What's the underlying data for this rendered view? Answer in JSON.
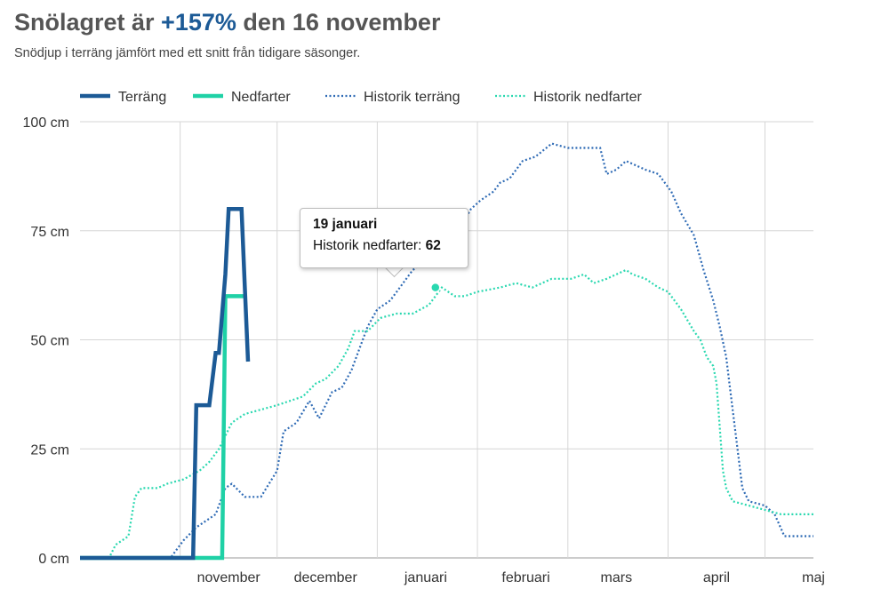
{
  "header": {
    "title_prefix": "Snölagret är ",
    "title_highlight": "+157%",
    "title_suffix": " den 16 november",
    "subtitle": "Snödjup i terräng jämfört med ett snitt från tidigare säsonger."
  },
  "colors": {
    "terrang": "#1c5a96",
    "nedfarter": "#1fd1a6",
    "historik_terrang": "#2f6bb5",
    "historik_nedfarter": "#2ad8b0",
    "grid": "#d6d6d6"
  },
  "tooltip": {
    "date": "19 januari",
    "label": "Historik nedfarter: ",
    "value": "62"
  },
  "chart_data": {
    "type": "line",
    "title": "",
    "xlabel": "",
    "ylabel": "",
    "ylim": [
      0,
      100
    ],
    "y_ticks": [
      0,
      25,
      50,
      75,
      100
    ],
    "y_tick_labels": [
      "0 cm",
      "25 cm",
      "50 cm",
      "75 cm",
      "100 cm"
    ],
    "x_unit": "day of season (1 = 1 oktober)",
    "xlim": [
      1,
      228
    ],
    "month_labels": [
      {
        "label": "november",
        "day": 47
      },
      {
        "label": "december",
        "day": 77
      },
      {
        "label": "januari",
        "day": 108
      },
      {
        "label": "februari",
        "day": 139
      },
      {
        "label": "mars",
        "day": 167
      },
      {
        "label": "april",
        "day": 198
      },
      {
        "label": "maj",
        "day": 228
      }
    ],
    "gridlines_x_days": [
      32,
      62,
      93,
      124,
      152,
      183,
      213
    ],
    "grid": true,
    "legend_position": "top",
    "series": [
      {
        "name": "Terräng",
        "style": "solid",
        "points": [
          [
            1,
            0
          ],
          [
            18,
            0
          ],
          [
            36,
            0
          ],
          [
            37,
            35
          ],
          [
            41,
            35
          ],
          [
            43,
            47
          ],
          [
            44,
            47
          ],
          [
            46,
            65
          ],
          [
            47,
            80
          ],
          [
            51,
            80
          ],
          [
            52,
            62
          ],
          [
            53,
            45
          ]
        ]
      },
      {
        "name": "Nedfarter",
        "style": "solid",
        "points": [
          [
            1,
            0
          ],
          [
            25,
            0
          ],
          [
            45,
            0
          ],
          [
            46,
            60
          ],
          [
            52,
            60
          ]
        ]
      },
      {
        "name": "Historik terräng",
        "style": "dotted",
        "points": [
          [
            1,
            0
          ],
          [
            20,
            0
          ],
          [
            29,
            0
          ],
          [
            33,
            4
          ],
          [
            37,
            7
          ],
          [
            43,
            10
          ],
          [
            46,
            16
          ],
          [
            48,
            17
          ],
          [
            52,
            14
          ],
          [
            57,
            14
          ],
          [
            62,
            20
          ],
          [
            64,
            29
          ],
          [
            68,
            31
          ],
          [
            72,
            36
          ],
          [
            75,
            32
          ],
          [
            79,
            38
          ],
          [
            82,
            39
          ],
          [
            85,
            43
          ],
          [
            88,
            49
          ],
          [
            90,
            53
          ],
          [
            93,
            57
          ],
          [
            97,
            59
          ],
          [
            100,
            62
          ],
          [
            104,
            66
          ],
          [
            108,
            68
          ],
          [
            113,
            71
          ],
          [
            118,
            75
          ],
          [
            122,
            80
          ],
          [
            125,
            82
          ],
          [
            129,
            84
          ],
          [
            131,
            86
          ],
          [
            134,
            87
          ],
          [
            138,
            91
          ],
          [
            142,
            92
          ],
          [
            147,
            95
          ],
          [
            152,
            94
          ],
          [
            156,
            94
          ],
          [
            162,
            94
          ],
          [
            164,
            88
          ],
          [
            167,
            89
          ],
          [
            170,
            91
          ],
          [
            176,
            89
          ],
          [
            180,
            88
          ],
          [
            184,
            84
          ],
          [
            187,
            79
          ],
          [
            191,
            74
          ],
          [
            194,
            66
          ],
          [
            197,
            59
          ],
          [
            199,
            53
          ],
          [
            201,
            46
          ],
          [
            202,
            40
          ],
          [
            205,
            22
          ],
          [
            206,
            16
          ],
          [
            208,
            13
          ],
          [
            213,
            12
          ],
          [
            216,
            10
          ],
          [
            219,
            5
          ],
          [
            228,
            5
          ]
        ]
      },
      {
        "name": "Historik nedfarter",
        "style": "dotted",
        "points": [
          [
            1,
            0
          ],
          [
            10,
            0
          ],
          [
            12,
            3
          ],
          [
            16,
            5
          ],
          [
            18,
            14
          ],
          [
            20,
            16
          ],
          [
            25,
            16
          ],
          [
            28,
            17
          ],
          [
            33,
            18
          ],
          [
            38,
            20
          ],
          [
            41,
            22
          ],
          [
            44,
            25
          ],
          [
            46,
            28
          ],
          [
            48,
            31
          ],
          [
            52,
            33
          ],
          [
            57,
            34
          ],
          [
            62,
            35
          ],
          [
            66,
            36
          ],
          [
            70,
            37
          ],
          [
            74,
            40
          ],
          [
            77,
            41
          ],
          [
            81,
            44
          ],
          [
            84,
            48
          ],
          [
            86,
            52
          ],
          [
            90,
            52
          ],
          [
            94,
            55
          ],
          [
            99,
            56
          ],
          [
            104,
            56
          ],
          [
            109,
            58
          ],
          [
            113,
            62
          ],
          [
            117,
            60
          ],
          [
            120,
            60
          ],
          [
            124,
            61
          ],
          [
            131,
            62
          ],
          [
            136,
            63
          ],
          [
            141,
            62
          ],
          [
            147,
            64
          ],
          [
            153,
            64
          ],
          [
            157,
            65
          ],
          [
            160,
            63
          ],
          [
            164,
            64
          ],
          [
            170,
            66
          ],
          [
            172,
            65
          ],
          [
            176,
            64
          ],
          [
            180,
            62
          ],
          [
            183,
            61
          ],
          [
            187,
            57
          ],
          [
            191,
            52
          ],
          [
            193,
            50
          ],
          [
            195,
            46
          ],
          [
            197,
            44
          ],
          [
            198,
            40
          ],
          [
            199,
            30
          ],
          [
            200,
            20
          ],
          [
            201,
            16
          ],
          [
            203,
            13
          ],
          [
            208,
            12
          ],
          [
            213,
            11
          ],
          [
            218,
            10
          ],
          [
            228,
            10
          ]
        ]
      }
    ]
  }
}
